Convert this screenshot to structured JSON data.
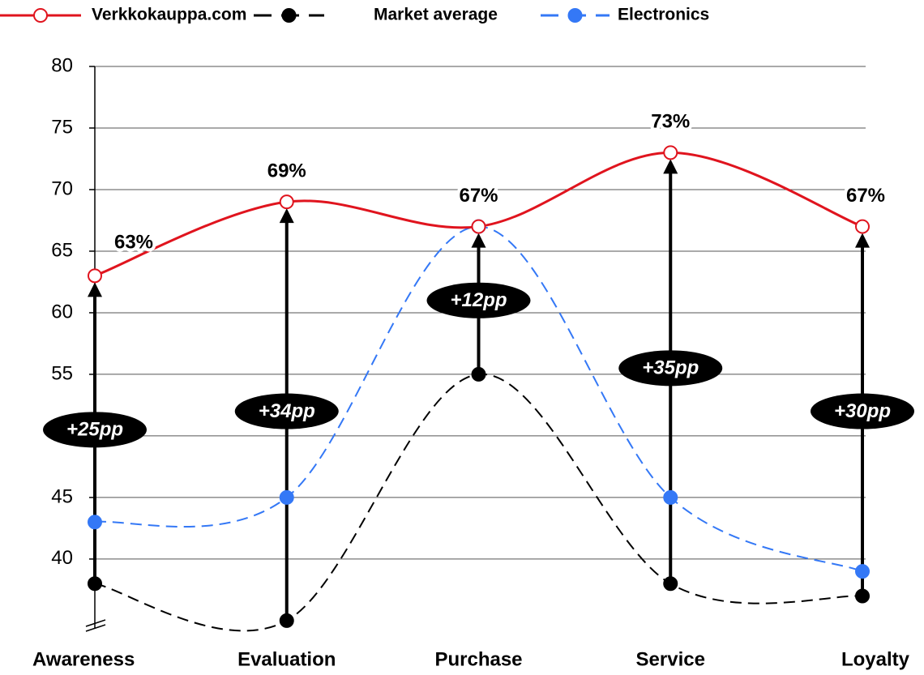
{
  "chart_data": {
    "type": "line",
    "categories": [
      "Awareness",
      "Evaluation",
      "Purchase",
      "Service",
      "Loyalty"
    ],
    "series": [
      {
        "name": "Verkkokauppa.com",
        "color": "#e0141e",
        "dashed": false,
        "marker": "open",
        "values": [
          63,
          69,
          67,
          73,
          67
        ],
        "value_labels": [
          "63%",
          "69%",
          "67%",
          "73%",
          "67%"
        ]
      },
      {
        "name": "Market average",
        "color": "#000000",
        "dashed": true,
        "marker": "filled",
        "values": [
          38,
          35,
          55,
          38,
          37
        ]
      },
      {
        "name": "Electronics",
        "color": "#3478f6",
        "dashed": true,
        "marker": "filled",
        "values": [
          43,
          45,
          67,
          45,
          39
        ]
      }
    ],
    "gap_labels": [
      "+25pp",
      "+34pp",
      "+12pp",
      "+35pp",
      "+30pp"
    ],
    "ylim": [
      34.4,
      80
    ],
    "yticks": [
      40,
      45,
      50,
      55,
      60,
      65,
      70,
      75,
      80
    ],
    "grid": true,
    "axis_break": true,
    "legend": "top-left"
  }
}
